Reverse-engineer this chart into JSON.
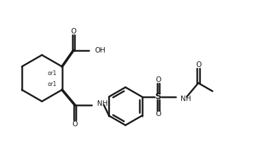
{
  "background_color": "#ffffff",
  "line_color": "#1a1a1a",
  "line_width": 1.8,
  "font_size": 7.5,
  "fig_width": 3.89,
  "fig_height": 2.33,
  "dpi": 100,
  "xlim": [
    0,
    10
  ],
  "ylim": [
    0,
    6
  ]
}
